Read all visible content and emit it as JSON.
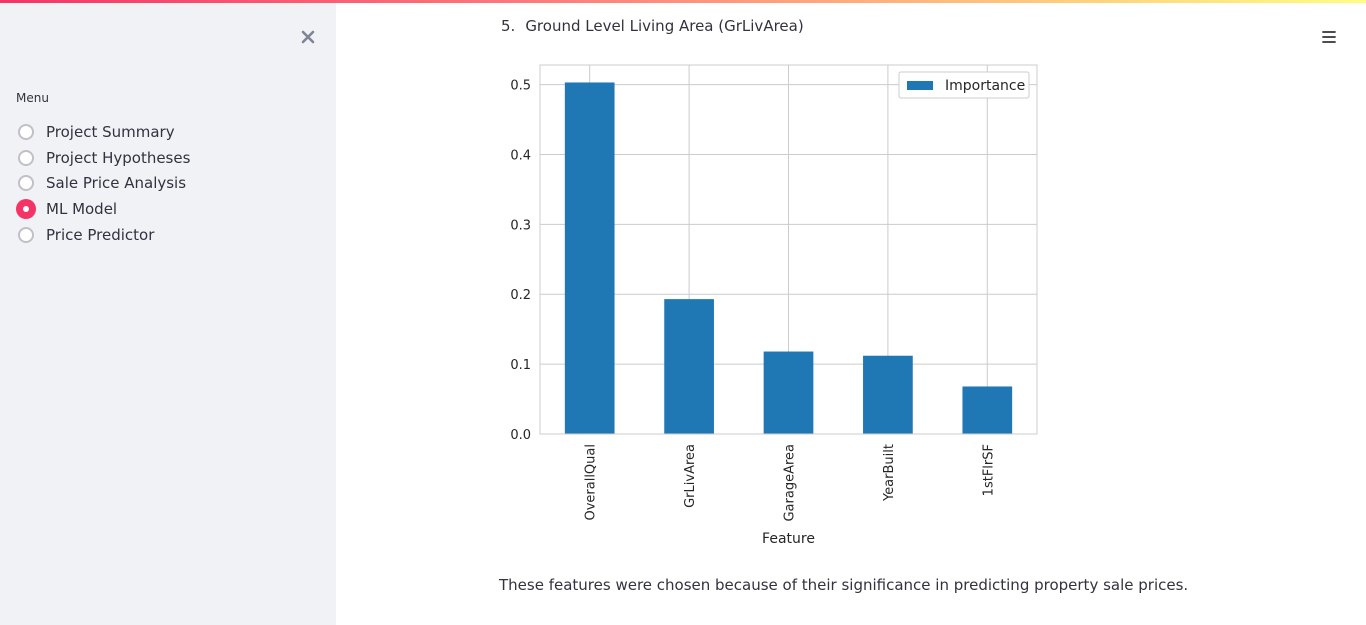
{
  "sidebar": {
    "menu_label": "Menu",
    "items": [
      {
        "label": "Project Summary",
        "selected": false
      },
      {
        "label": "Project Hypotheses",
        "selected": false
      },
      {
        "label": "Sale Price Analysis",
        "selected": false
      },
      {
        "label": "ML Model",
        "selected": true
      },
      {
        "label": "Price Predictor",
        "selected": false
      }
    ],
    "close_icon": "close-icon"
  },
  "header": {
    "menu_icon": "hamburger-menu-icon"
  },
  "main": {
    "list_number": "5.",
    "heading": "Ground Level Living Area (GrLivArea)",
    "footer": "These features were chosen because of their significance in predicting property sale prices."
  },
  "colors": {
    "accent": "#f63366",
    "sidebar_bg": "#f0f2f6",
    "bar": "#1f77b4"
  },
  "chart_data": {
    "type": "bar",
    "categories": [
      "OverallQual",
      "GrLivArea",
      "GarageArea",
      "YearBuilt",
      "1stFlrSF"
    ],
    "series": [
      {
        "name": "Importance",
        "values": [
          0.503,
          0.193,
          0.118,
          0.112,
          0.068
        ]
      }
    ],
    "xlabel": "Feature",
    "ylabel": "",
    "ylim": [
      0,
      0.528
    ],
    "yticks": [
      "0.0",
      "0.1",
      "0.2",
      "0.3",
      "0.4",
      "0.5"
    ],
    "grid": true,
    "legend": "top-right"
  }
}
